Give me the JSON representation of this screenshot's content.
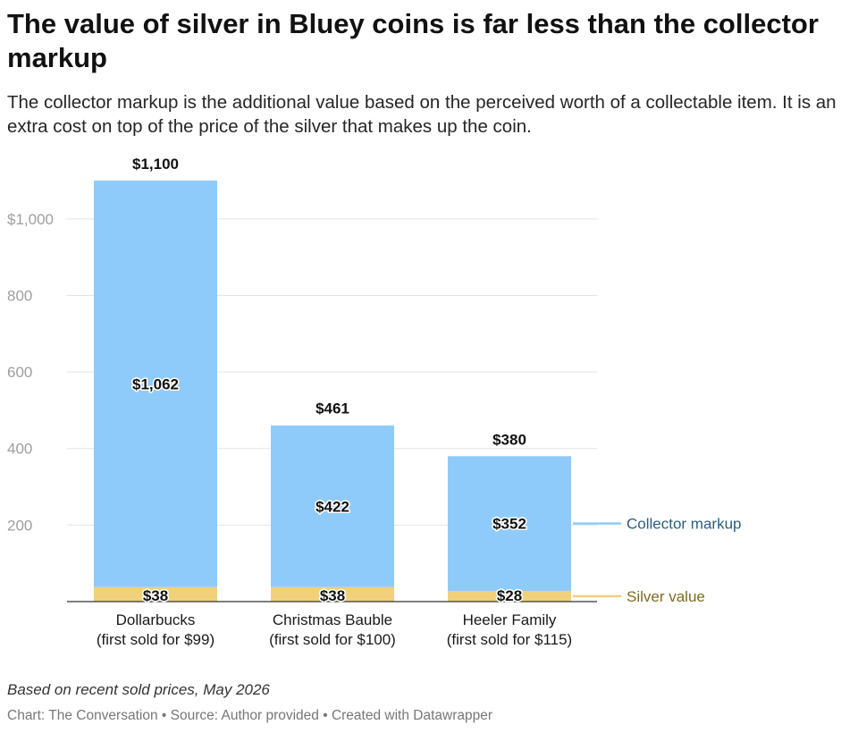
{
  "header": {
    "title": "The value of silver in Bluey coins is far less than the collector markup",
    "subtitle": "The collector markup is the additional value based on the perceived worth of a collectable item. It is an extra cost on top of the price of the silver that makes up the coin."
  },
  "footer": {
    "note": "Based on recent sold prices, May 2026",
    "credit": "Chart: The Conversation • Source: Author provided • Created with Datawrapper"
  },
  "chart_data": {
    "type": "bar",
    "stacked": true,
    "categories": [
      [
        "Dollarbucks",
        "(first sold for $99)"
      ],
      [
        "Christmas Bauble",
        "(first sold for $100)"
      ],
      [
        "Heeler Family",
        "(first sold for $115)"
      ]
    ],
    "series": [
      {
        "name": "Silver value",
        "values": [
          38,
          38,
          28
        ],
        "labels": [
          "$38",
          "$38",
          "$28"
        ],
        "color": "#f0d07a"
      },
      {
        "name": "Collector markup",
        "values": [
          1062,
          422,
          352
        ],
        "labels": [
          "$1,062",
          "$422",
          "$352"
        ],
        "color": "#8fcbfa"
      }
    ],
    "totals": [
      1100,
      461,
      380
    ],
    "total_labels": [
      "$1,100",
      "$461",
      "$380"
    ],
    "ylim": [
      0,
      1100
    ],
    "yticks": [
      200,
      400,
      600,
      800,
      1000
    ],
    "ytick_labels": [
      "200",
      "400",
      "600",
      "800",
      "$1,000"
    ],
    "legend_placement": "right, labels at end of last bar",
    "legend_colors": {
      "Collector markup": "#2b5f7d",
      "Silver value": "#7d6b1f"
    },
    "grid": true,
    "xlabel": "",
    "ylabel": ""
  }
}
